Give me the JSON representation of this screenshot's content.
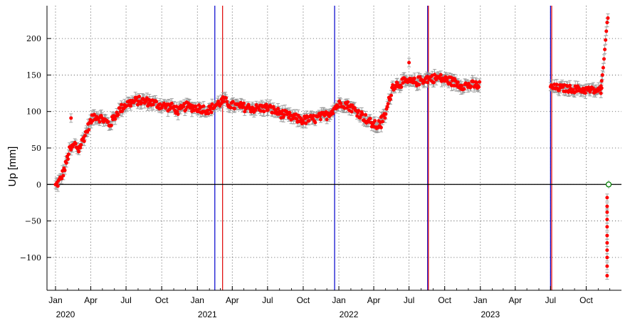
{
  "chart_data": {
    "type": "scatter",
    "ylabel": "Up [mm]",
    "xlabel": "",
    "title": "",
    "xlim": [
      "2019-12-10",
      "2023-12-31"
    ],
    "ylim": [
      -145,
      245
    ],
    "grid": true,
    "y_ticks": [
      -100,
      -50,
      0,
      50,
      100,
      150,
      200
    ],
    "y_tick_labels": [
      "−100",
      "−50",
      "0",
      "50",
      "100",
      "150",
      "200"
    ],
    "x_ticks": [
      {
        "date": "2020-01-01",
        "label": "Jan"
      },
      {
        "date": "2020-04-01",
        "label": "Apr"
      },
      {
        "date": "2020-07-01",
        "label": "Jul"
      },
      {
        "date": "2020-10-01",
        "label": "Oct"
      },
      {
        "date": "2021-01-01",
        "label": "Jan"
      },
      {
        "date": "2021-04-01",
        "label": "Apr"
      },
      {
        "date": "2021-07-01",
        "label": "Jul"
      },
      {
        "date": "2021-10-01",
        "label": "Oct"
      },
      {
        "date": "2022-01-01",
        "label": "Jan"
      },
      {
        "date": "2022-04-01",
        "label": "Apr"
      },
      {
        "date": "2022-07-01",
        "label": "Jul"
      },
      {
        "date": "2022-10-01",
        "label": "Oct"
      },
      {
        "date": "2023-01-01",
        "label": "Jan"
      },
      {
        "date": "2023-04-01",
        "label": "Apr"
      },
      {
        "date": "2023-07-01",
        "label": "Jul"
      },
      {
        "date": "2023-10-01",
        "label": "Oct"
      }
    ],
    "year_labels": [
      {
        "date": "2020-01-01",
        "label": "2020"
      },
      {
        "date": "2021-01-01",
        "label": "2021"
      },
      {
        "date": "2022-01-01",
        "label": "2022"
      },
      {
        "date": "2023-01-01",
        "label": "2023"
      }
    ],
    "zero_line": 0,
    "vertical_lines": [
      {
        "date": "2021-02-15",
        "color": "#0000cc"
      },
      {
        "date": "2021-03-07",
        "color": "#e00000"
      },
      {
        "date": "2021-12-21",
        "color": "#0000cc"
      },
      {
        "date": "2022-08-18",
        "color": "#0000cc"
      },
      {
        "date": "2022-08-20",
        "color": "#e00000"
      },
      {
        "date": "2023-07-01",
        "color": "#0000cc"
      },
      {
        "date": "2023-07-04",
        "color": "#e00000"
      }
    ],
    "trend_nodes": [
      [
        "2020-01-01",
        -2
      ],
      [
        "2020-01-12",
        5
      ],
      [
        "2020-01-25",
        22
      ],
      [
        "2020-02-05",
        45
      ],
      [
        "2020-02-20",
        55
      ],
      [
        "2020-03-01",
        48
      ],
      [
        "2020-03-15",
        65
      ],
      [
        "2020-03-28",
        82
      ],
      [
        "2020-04-10",
        95
      ],
      [
        "2020-05-01",
        90
      ],
      [
        "2020-05-20",
        82
      ],
      [
        "2020-06-10",
        100
      ],
      [
        "2020-07-01",
        110
      ],
      [
        "2020-08-01",
        115
      ],
      [
        "2020-09-01",
        113
      ],
      [
        "2020-10-01",
        108
      ],
      [
        "2020-11-01",
        105
      ],
      [
        "2020-11-15",
        100
      ],
      [
        "2020-12-01",
        107
      ],
      [
        "2021-01-01",
        105
      ],
      [
        "2021-02-01",
        102
      ],
      [
        "2021-02-15",
        108
      ],
      [
        "2021-03-10",
        115
      ],
      [
        "2021-04-01",
        108
      ],
      [
        "2021-05-01",
        106
      ],
      [
        "2021-06-01",
        104
      ],
      [
        "2021-07-01",
        105
      ],
      [
        "2021-08-01",
        98
      ],
      [
        "2021-09-01",
        92
      ],
      [
        "2021-10-01",
        88
      ],
      [
        "2021-11-01",
        90
      ],
      [
        "2021-12-01",
        95
      ],
      [
        "2021-12-25",
        107
      ],
      [
        "2022-01-10",
        112
      ],
      [
        "2022-02-01",
        106
      ],
      [
        "2022-03-01",
        95
      ],
      [
        "2022-03-25",
        84
      ],
      [
        "2022-04-10",
        80
      ],
      [
        "2022-05-01",
        95
      ],
      [
        "2022-05-20",
        135
      ],
      [
        "2022-06-15",
        140
      ],
      [
        "2022-07-15",
        140
      ],
      [
        "2022-08-15",
        145
      ],
      [
        "2022-09-15",
        146
      ],
      [
        "2022-10-15",
        142
      ],
      [
        "2022-11-15",
        136
      ],
      [
        "2022-12-31",
        136
      ]
    ],
    "segment_2023": {
      "start": "2023-07-01",
      "end": "2023-11-10",
      "start_value": 133,
      "end_value": 128
    },
    "surge_points": [
      [
        "2023-11-06",
        130
      ],
      [
        "2023-11-08",
        135
      ],
      [
        "2023-11-10",
        142
      ],
      [
        "2023-11-12",
        150
      ],
      [
        "2023-11-14",
        160
      ],
      [
        "2023-11-16",
        172
      ],
      [
        "2023-11-18",
        185
      ],
      [
        "2023-11-20",
        198
      ],
      [
        "2023-11-22",
        210
      ],
      [
        "2023-11-24",
        222
      ],
      [
        "2023-11-26",
        228
      ]
    ],
    "outlier_points": [
      [
        "2020-02-10",
        91
      ],
      [
        "2022-07-01",
        167
      ],
      [
        "2022-04-20",
        78
      ]
    ],
    "negative_points": [
      [
        "2023-11-24",
        -18
      ],
      [
        "2023-11-24",
        -30
      ],
      [
        "2023-11-24",
        -38
      ],
      [
        "2023-11-24",
        -48
      ],
      [
        "2023-11-24",
        -58
      ],
      [
        "2023-11-24",
        -70
      ],
      [
        "2023-11-24",
        -80
      ],
      [
        "2023-11-24",
        -90
      ],
      [
        "2023-11-24",
        -100
      ],
      [
        "2023-11-24",
        -112
      ],
      [
        "2023-11-24",
        -125
      ]
    ],
    "open_marker": {
      "date": "2023-11-28",
      "value": 0,
      "color": "#008000"
    },
    "marker_color": "#ff0000",
    "errorbar_color": "#999999",
    "zero_line_color": "#000000"
  }
}
